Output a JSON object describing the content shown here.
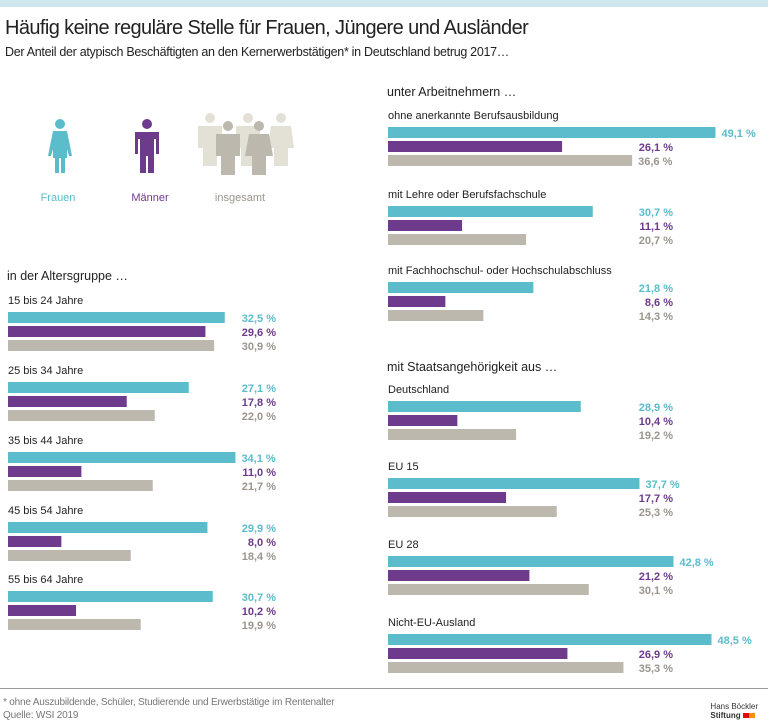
{
  "title": "Häufig keine reguläre Stelle für Frauen, Jüngere und Ausländer",
  "subtitle": "Der Anteil der atypisch Beschäftigten an den Kernerwerbstätigen* in Deutschland betrug 2017…",
  "legend": [
    {
      "name": "Frauen",
      "color": "#5bbccb",
      "icon": "woman-icon"
    },
    {
      "name": "Männer",
      "color": "#6e3a8c",
      "icon": "man-icon"
    },
    {
      "name": "insgesamt",
      "color": "#bdb8ad",
      "icon": "group-icon"
    }
  ],
  "chart_data": [
    {
      "type": "bar",
      "orientation": "horizontal",
      "title": "in der Altersgruppe …",
      "categories": [
        "15 bis 24 Jahre",
        "25 bis 34 Jahre",
        "35 bis 44 Jahre",
        "45 bis 54 Jahre",
        "55 bis 64 Jahre"
      ],
      "series": [
        {
          "name": "Frauen",
          "values": [
            32.5,
            27.1,
            34.1,
            29.9,
            30.7
          ],
          "labels": [
            "32,5 %",
            "27,1 %",
            "34,1 %",
            "29,9 %",
            "30,7 %"
          ]
        },
        {
          "name": "Männer",
          "values": [
            29.6,
            17.8,
            11.0,
            8.0,
            10.2
          ],
          "labels": [
            "29,6 %",
            "17,8 %",
            "11,0 %",
            "8,0 %",
            "10,2 %"
          ]
        },
        {
          "name": "insgesamt",
          "values": [
            30.9,
            22.0,
            21.7,
            18.4,
            19.9
          ],
          "labels": [
            "30,9 %",
            "22,0 %",
            "21,7 %",
            "18,4 %",
            "19,9 %"
          ]
        }
      ]
    },
    {
      "type": "bar",
      "orientation": "horizontal",
      "title": "unter Arbeitnehmern …",
      "categories": [
        "ohne anerkannte Berufsausbildung",
        "mit Lehre oder Berufsfachschule",
        "mit Fachhochschul- oder Hochschulabschluss"
      ],
      "series": [
        {
          "name": "Frauen",
          "values": [
            49.1,
            30.7,
            21.8
          ],
          "labels": [
            "49,1 %",
            "30,7 %",
            "21,8 %"
          ]
        },
        {
          "name": "Männer",
          "values": [
            26.1,
            11.1,
            8.6
          ],
          "labels": [
            "26,1 %",
            "11,1 %",
            "8,6 %"
          ]
        },
        {
          "name": "insgesamt",
          "values": [
            36.6,
            20.7,
            14.3
          ],
          "labels": [
            "36,6 %",
            "20,7 %",
            "14,3 %"
          ]
        }
      ]
    },
    {
      "type": "bar",
      "orientation": "horizontal",
      "title": "mit Staatsangehörigkeit aus …",
      "categories": [
        "Deutschland",
        "EU 15",
        "EU 28",
        "Nicht-EU-Ausland"
      ],
      "series": [
        {
          "name": "Frauen",
          "values": [
            28.9,
            37.7,
            42.8,
            48.5
          ],
          "labels": [
            "28,9 %",
            "37,7 %",
            "42,8 %",
            "48,5 %"
          ]
        },
        {
          "name": "Männer",
          "values": [
            10.4,
            17.7,
            21.2,
            26.9
          ],
          "labels": [
            "10,4 %",
            "17,7 %",
            "21,2 %",
            "26,9 %"
          ]
        },
        {
          "name": "insgesamt",
          "values": [
            19.2,
            25.3,
            30.1,
            35.3
          ],
          "labels": [
            "19,2 %",
            "25,3 %",
            "30,1 %",
            "35,3 %"
          ]
        }
      ]
    }
  ],
  "footer": {
    "note": "* ohne Auszubildende, Schüler, Studierende und Erwerbstätige im Rentenalter",
    "source": "Quelle: WSI 2019",
    "logo_text": [
      "Hans Böckler",
      "Stiftung"
    ]
  }
}
